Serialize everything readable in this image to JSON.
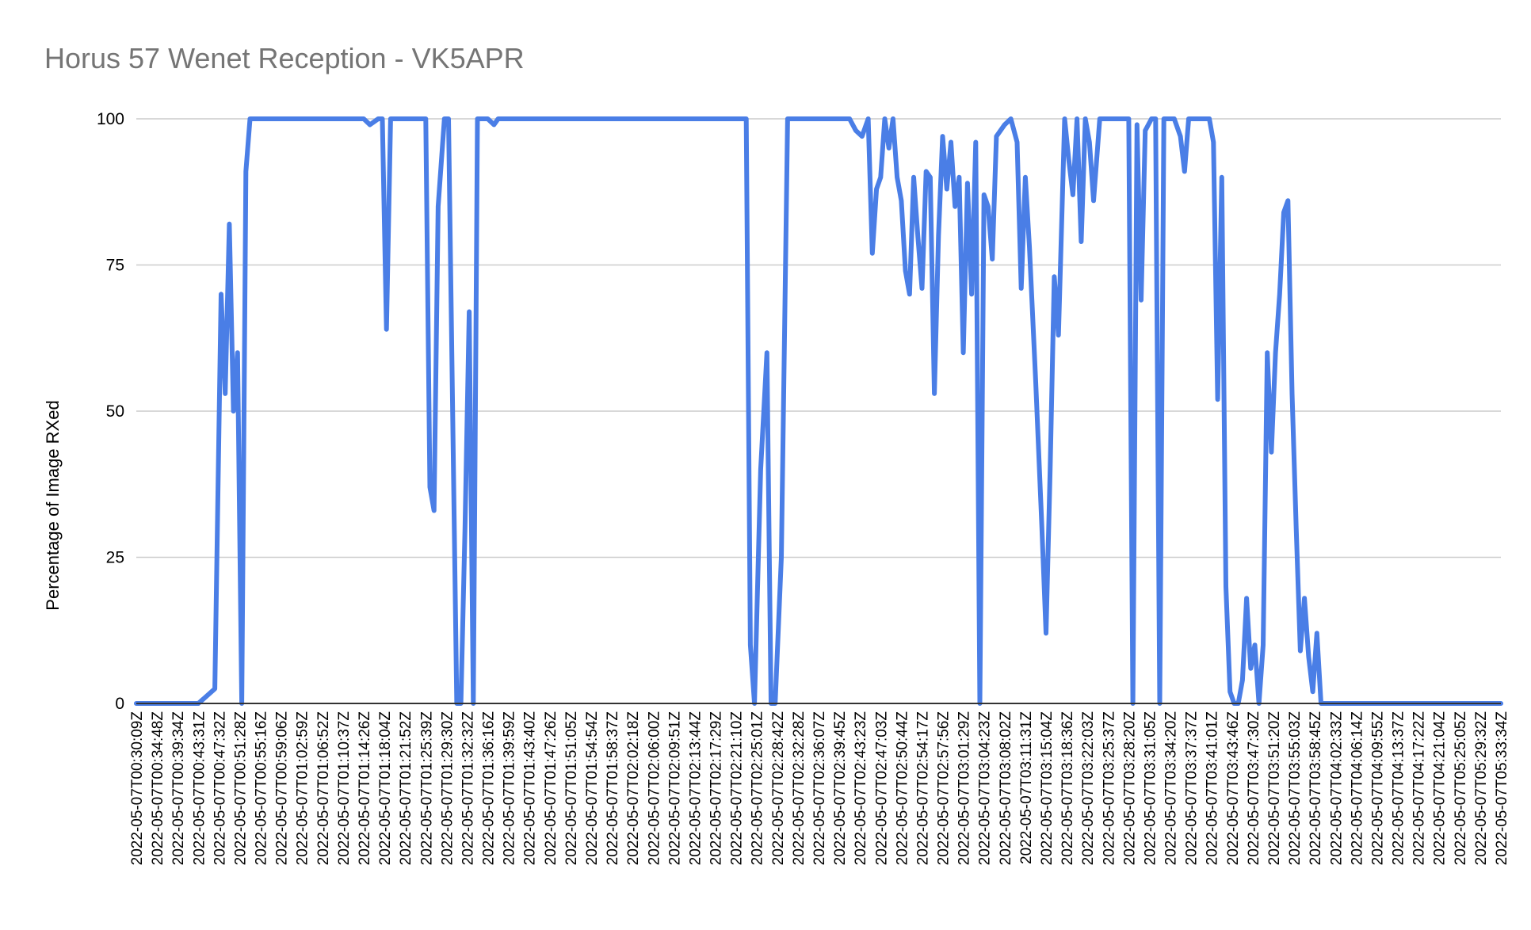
{
  "chart_data": {
    "type": "line",
    "title": "Horus 57 Wenet Reception - VK5APR",
    "xlabel": "",
    "ylabel": "Percentage of Image RXed",
    "ylim": [
      0,
      100
    ],
    "yticks": [
      0,
      25,
      50,
      75,
      100
    ],
    "grid": true,
    "legend": "none",
    "x_tick_labels": [
      "2022-05-07T00:30:09Z",
      "2022-05-07T00:34:48Z",
      "2022-05-07T00:39:34Z",
      "2022-05-07T00:43:31Z",
      "2022-05-07T00:47:32Z",
      "2022-05-07T00:51:28Z",
      "2022-05-07T00:55:16Z",
      "2022-05-07T00:59:06Z",
      "2022-05-07T01:02:59Z",
      "2022-05-07T01:06:52Z",
      "2022-05-07T01:10:37Z",
      "2022-05-07T01:14:26Z",
      "2022-05-07T01:18:04Z",
      "2022-05-07T01:21:52Z",
      "2022-05-07T01:25:39Z",
      "2022-05-07T01:29:30Z",
      "2022-05-07T01:32:32Z",
      "2022-05-07T01:36:16Z",
      "2022-05-07T01:39:59Z",
      "2022-05-07T01:43:40Z",
      "2022-05-07T01:47:26Z",
      "2022-05-07T01:51:05Z",
      "2022-05-07T01:54:54Z",
      "2022-05-07T01:58:37Z",
      "2022-05-07T02:02:18Z",
      "2022-05-07T02:06:00Z",
      "2022-05-07T02:09:51Z",
      "2022-05-07T02:13:44Z",
      "2022-05-07T02:17:29Z",
      "2022-05-07T02:21:10Z",
      "2022-05-07T02:25:01Z",
      "2022-05-07T02:28:42Z",
      "2022-05-07T02:32:28Z",
      "2022-05-07T02:36:07Z",
      "2022-05-07T02:39:45Z",
      "2022-05-07T02:43:23Z",
      "2022-05-07T02:47:03Z",
      "2022-05-07T02:50:44Z",
      "2022-05-07T02:54:17Z",
      "2022-05-07T02:57:56Z",
      "2022-05-07T03:01:29Z",
      "2022-05-07T03:04:23Z",
      "2022-05-07T03:08:02Z",
      "2022-05-07T03:11:31Z",
      "2022-05-07T03:15:04Z",
      "2022-05-07T03:18:36Z",
      "2022-05-07T03:22:03Z",
      "2022-05-07T03:25:37Z",
      "2022-05-07T03:28:20Z",
      "2022-05-07T03:31:05Z",
      "2022-05-07T03:34:20Z",
      "2022-05-07T03:37:37Z",
      "2022-05-07T03:41:01Z",
      "2022-05-07T03:43:46Z",
      "2022-05-07T03:47:30Z",
      "2022-05-07T03:51:20Z",
      "2022-05-07T03:55:03Z",
      "2022-05-07T03:58:45Z",
      "2022-05-07T04:02:33Z",
      "2022-05-07T04:06:14Z",
      "2022-05-07T04:09:55Z",
      "2022-05-07T04:13:37Z",
      "2022-05-07T04:17:22Z",
      "2022-05-07T04:21:04Z",
      "2022-05-07T05:25:05Z",
      "2022-05-07T05:29:32Z",
      "2022-05-07T05:33:34Z"
    ],
    "series": [
      {
        "color": "#4a7ee6",
        "points": [
          [
            0,
            0
          ],
          [
            3,
            0
          ],
          [
            3.8,
            2.5
          ],
          [
            4.1,
            70
          ],
          [
            4.3,
            53
          ],
          [
            4.5,
            82
          ],
          [
            4.7,
            50
          ],
          [
            4.9,
            60
          ],
          [
            5.1,
            0
          ],
          [
            5.3,
            91
          ],
          [
            5.5,
            100
          ],
          [
            11.0,
            100
          ],
          [
            11.3,
            99
          ],
          [
            11.7,
            100
          ],
          [
            11.9,
            100
          ],
          [
            12.1,
            64
          ],
          [
            12.3,
            100
          ],
          [
            14.0,
            100
          ],
          [
            14.2,
            37
          ],
          [
            14.4,
            33
          ],
          [
            14.6,
            85
          ],
          [
            14.9,
            100
          ],
          [
            15.1,
            100
          ],
          [
            15.5,
            0
          ],
          [
            15.7,
            0
          ],
          [
            15.9,
            30
          ],
          [
            16.1,
            67
          ],
          [
            16.3,
            0
          ],
          [
            16.5,
            100
          ],
          [
            17.0,
            100
          ],
          [
            17.3,
            99
          ],
          [
            17.5,
            100
          ],
          [
            29.5,
            100
          ],
          [
            29.7,
            10
          ],
          [
            29.9,
            0
          ],
          [
            30.2,
            40
          ],
          [
            30.5,
            60
          ],
          [
            30.7,
            0
          ],
          [
            30.9,
            0
          ],
          [
            31.2,
            25
          ],
          [
            31.5,
            100
          ],
          [
            34.5,
            100
          ],
          [
            34.8,
            98
          ],
          [
            35.1,
            97
          ],
          [
            35.4,
            100
          ],
          [
            35.6,
            77
          ],
          [
            35.8,
            88
          ],
          [
            36.0,
            90
          ],
          [
            36.2,
            100
          ],
          [
            36.4,
            95
          ],
          [
            36.6,
            100
          ],
          [
            36.8,
            90
          ],
          [
            37.0,
            86
          ],
          [
            37.2,
            74
          ],
          [
            37.4,
            70
          ],
          [
            37.6,
            90
          ],
          [
            37.8,
            80
          ],
          [
            38.0,
            71
          ],
          [
            38.2,
            91
          ],
          [
            38.4,
            90
          ],
          [
            38.6,
            53
          ],
          [
            38.8,
            80
          ],
          [
            39.0,
            97
          ],
          [
            39.2,
            88
          ],
          [
            39.4,
            96
          ],
          [
            39.6,
            85
          ],
          [
            39.8,
            90
          ],
          [
            40.0,
            60
          ],
          [
            40.2,
            89
          ],
          [
            40.4,
            70
          ],
          [
            40.6,
            96
          ],
          [
            40.8,
            0
          ],
          [
            41.0,
            87
          ],
          [
            41.2,
            85
          ],
          [
            41.4,
            76
          ],
          [
            41.6,
            97
          ],
          [
            42.0,
            99
          ],
          [
            42.3,
            100
          ],
          [
            42.6,
            96
          ],
          [
            42.8,
            71
          ],
          [
            43.0,
            90
          ],
          [
            43.2,
            78
          ],
          [
            43.5,
            55
          ],
          [
            43.8,
            30
          ],
          [
            44.0,
            12
          ],
          [
            44.2,
            40
          ],
          [
            44.4,
            73
          ],
          [
            44.6,
            63
          ],
          [
            44.9,
            100
          ],
          [
            45.1,
            93
          ],
          [
            45.3,
            87
          ],
          [
            45.5,
            100
          ],
          [
            45.7,
            79
          ],
          [
            45.9,
            100
          ],
          [
            46.1,
            96
          ],
          [
            46.3,
            86
          ],
          [
            46.6,
            100
          ],
          [
            48.0,
            100
          ],
          [
            48.2,
            0
          ],
          [
            48.4,
            99
          ],
          [
            48.6,
            69
          ],
          [
            48.8,
            98
          ],
          [
            49.1,
            100
          ],
          [
            49.3,
            100
          ],
          [
            49.5,
            0
          ],
          [
            49.7,
            100
          ],
          [
            50.2,
            100
          ],
          [
            50.5,
            97
          ],
          [
            50.7,
            91
          ],
          [
            50.9,
            100
          ],
          [
            51.9,
            100
          ],
          [
            52.1,
            96
          ],
          [
            52.3,
            52
          ],
          [
            52.5,
            90
          ],
          [
            52.7,
            20
          ],
          [
            52.9,
            2
          ],
          [
            53.1,
            0
          ],
          [
            53.3,
            0
          ],
          [
            53.5,
            4
          ],
          [
            53.7,
            18
          ],
          [
            53.9,
            6
          ],
          [
            54.1,
            10
          ],
          [
            54.3,
            0
          ],
          [
            54.5,
            10
          ],
          [
            54.7,
            60
          ],
          [
            54.9,
            43
          ],
          [
            55.1,
            60
          ],
          [
            55.3,
            70
          ],
          [
            55.5,
            84
          ],
          [
            55.7,
            86
          ],
          [
            55.9,
            53
          ],
          [
            56.1,
            30
          ],
          [
            56.3,
            9
          ],
          [
            56.5,
            18
          ],
          [
            56.7,
            8
          ],
          [
            56.9,
            2
          ],
          [
            57.1,
            12
          ],
          [
            57.3,
            0
          ],
          [
            66,
            0
          ]
        ]
      }
    ]
  }
}
